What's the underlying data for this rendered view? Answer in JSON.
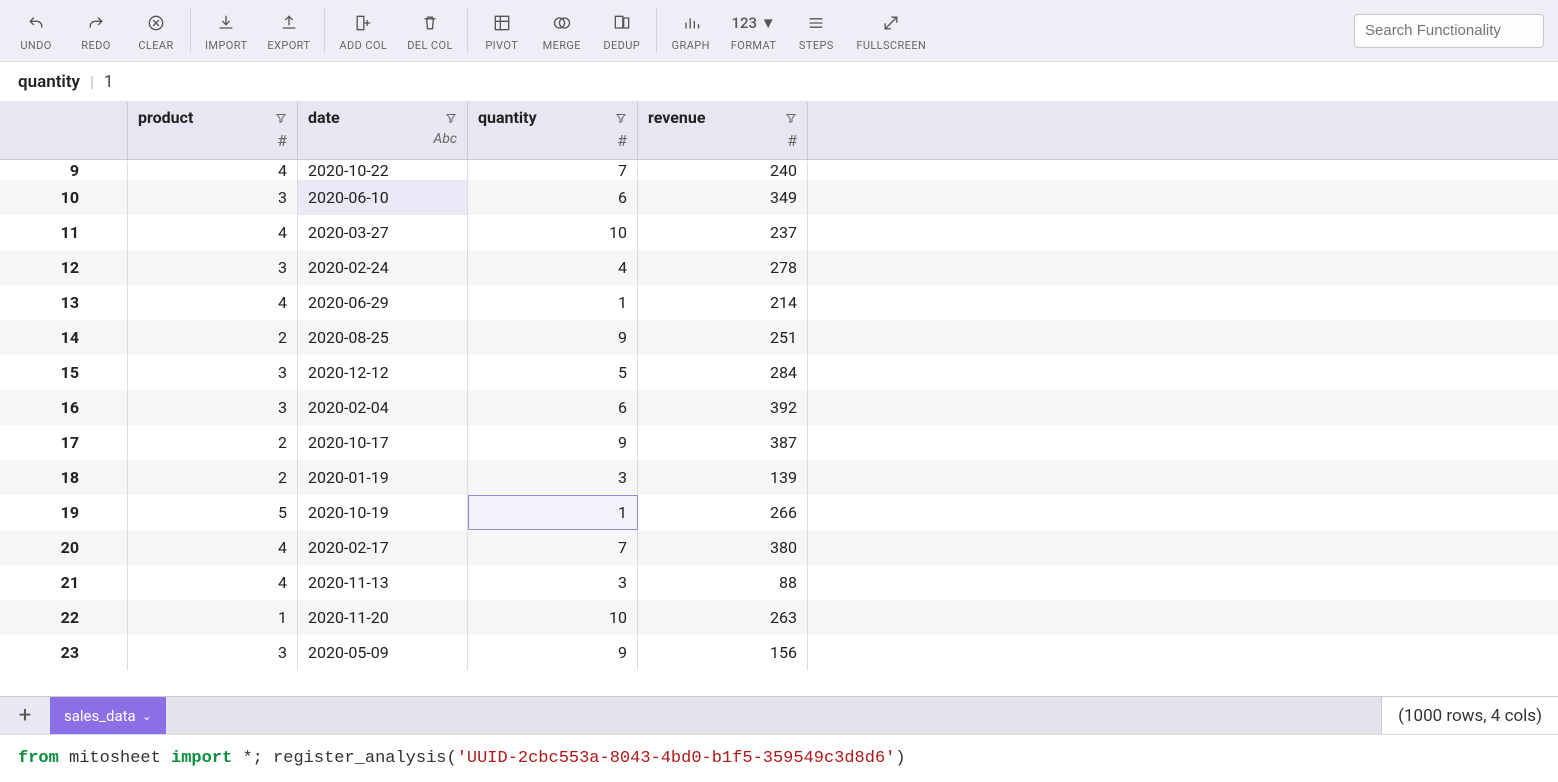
{
  "toolbar": {
    "buttons": [
      {
        "id": "undo",
        "label": "UNDO"
      },
      {
        "id": "redo",
        "label": "REDO"
      },
      {
        "id": "clear",
        "label": "CLEAR"
      },
      {
        "id": "import",
        "label": "IMPORT"
      },
      {
        "id": "export",
        "label": "EXPORT"
      },
      {
        "id": "addcol",
        "label": "ADD COL"
      },
      {
        "id": "delcol",
        "label": "DEL COL"
      },
      {
        "id": "pivot",
        "label": "PIVOT"
      },
      {
        "id": "merge",
        "label": "MERGE"
      },
      {
        "id": "dedup",
        "label": "DEDUP"
      },
      {
        "id": "graph",
        "label": "GRAPH"
      },
      {
        "id": "format",
        "label": "FORMAT"
      },
      {
        "id": "steps",
        "label": "STEPS"
      },
      {
        "id": "fullscreen",
        "label": "FULLSCREEN"
      }
    ],
    "format_text": "123 ▼",
    "separators_after": [
      "clear",
      "export",
      "delcol",
      "dedup"
    ],
    "search_placeholder": "Search Functionality"
  },
  "formula_bar": {
    "name": "quantity",
    "value": "1"
  },
  "columns": [
    {
      "key": "product",
      "label": "product",
      "dtype": "#",
      "dtype_class": "num",
      "align": "num"
    },
    {
      "key": "date",
      "label": "date",
      "dtype": "Abc",
      "dtype_class": "",
      "align": "txt"
    },
    {
      "key": "quantity",
      "label": "quantity",
      "dtype": "#",
      "dtype_class": "num",
      "align": "num"
    },
    {
      "key": "revenue",
      "label": "revenue",
      "dtype": "#",
      "dtype_class": "num",
      "align": "num"
    }
  ],
  "rows": [
    {
      "idx": "9",
      "partial": true,
      "product": "4",
      "date": "2020-10-22",
      "quantity": "7",
      "revenue": "240"
    },
    {
      "idx": "10",
      "product": "3",
      "date": "2020-06-10",
      "quantity": "6",
      "revenue": "349",
      "hl_date": true
    },
    {
      "idx": "11",
      "product": "4",
      "date": "2020-03-27",
      "quantity": "10",
      "revenue": "237"
    },
    {
      "idx": "12",
      "product": "3",
      "date": "2020-02-24",
      "quantity": "4",
      "revenue": "278"
    },
    {
      "idx": "13",
      "product": "4",
      "date": "2020-06-29",
      "quantity": "1",
      "revenue": "214"
    },
    {
      "idx": "14",
      "product": "2",
      "date": "2020-08-25",
      "quantity": "9",
      "revenue": "251"
    },
    {
      "idx": "15",
      "product": "3",
      "date": "2020-12-12",
      "quantity": "5",
      "revenue": "284"
    },
    {
      "idx": "16",
      "product": "3",
      "date": "2020-02-04",
      "quantity": "6",
      "revenue": "392"
    },
    {
      "idx": "17",
      "product": "2",
      "date": "2020-10-17",
      "quantity": "9",
      "revenue": "387"
    },
    {
      "idx": "18",
      "product": "2",
      "date": "2020-01-19",
      "quantity": "3",
      "revenue": "139"
    },
    {
      "idx": "19",
      "product": "5",
      "date": "2020-10-19",
      "quantity": "1",
      "revenue": "266",
      "selected_col": "quantity"
    },
    {
      "idx": "20",
      "product": "4",
      "date": "2020-02-17",
      "quantity": "7",
      "revenue": "380"
    },
    {
      "idx": "21",
      "product": "4",
      "date": "2020-11-13",
      "quantity": "3",
      "revenue": "88"
    },
    {
      "idx": "22",
      "product": "1",
      "date": "2020-11-20",
      "quantity": "10",
      "revenue": "263"
    },
    {
      "idx": "23",
      "product": "3",
      "date": "2020-05-09",
      "quantity": "9",
      "revenue": "156"
    }
  ],
  "tabs": {
    "sheet_name": "sales_data",
    "status": "(1000 rows, 4 cols)"
  },
  "code": {
    "kw1": "from",
    "mod": " mitosheet ",
    "kw2": "import",
    "rest": " *; register_analysis(",
    "str": "'UUID-2cbc553a-8043-4bd0-b1f5-359549c3d8d6'",
    "end": ")"
  },
  "colors": {
    "toolbar_bg": "#efeef7",
    "header_bg": "#e7e6f2",
    "row_alt_bg": "#f6f6f6",
    "tab_active_bg": "#8c6fe6",
    "selection_border": "#9a86d8",
    "selection_fill": "#f5f1fd",
    "date_highlight": "#ece8f7"
  }
}
